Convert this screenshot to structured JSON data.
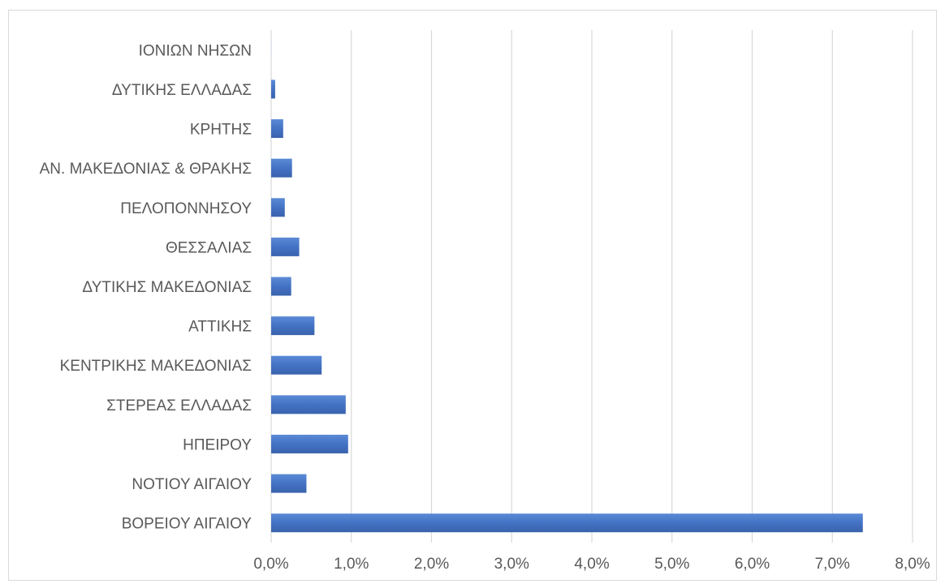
{
  "chart_data": {
    "type": "bar",
    "orientation": "horizontal",
    "title": "",
    "xlabel": "",
    "ylabel": "",
    "categories": [
      "ΙΟΝΙΩΝ ΝΗΣΩΝ",
      "ΔΥΤΙΚΗΣ ΕΛΛΑΔΑΣ",
      "ΚΡΗΤΗΣ",
      "ΑΝ. ΜΑΚΕΔΟΝΙΑΣ & ΘΡΑΚΗΣ",
      "ΠΕΛΟΠΟΝΝΗΣΟΥ",
      "ΘΕΣΣΑΛΙΑΣ",
      "ΔΥΤΙΚΗΣ ΜΑΚΕΔΟΝΙΑΣ",
      "ΑΤΤΙΚΗΣ",
      "ΚΕΝΤΡΙΚΗΣ ΜΑΚΕΔΟΝΙΑΣ",
      "ΣΤΕΡΕΑΣ ΕΛΛΑΔΑΣ",
      "ΗΠΕΙΡΟΥ",
      "ΝΟΤΙΟΥ ΑΙΓΑΙΟΥ",
      "ΒΟΡΕΙΟΥ ΑΙΓΑΙΟΥ"
    ],
    "values": [
      0.01,
      0.05,
      0.15,
      0.26,
      0.17,
      0.35,
      0.25,
      0.54,
      0.63,
      0.93,
      0.96,
      0.44,
      7.38
    ],
    "value_unit": "%",
    "xlim": [
      0,
      8
    ],
    "x_ticks": [
      0,
      1,
      2,
      3,
      4,
      5,
      6,
      7,
      8
    ],
    "x_tick_labels": [
      "0,0%",
      "1,0%",
      "2,0%",
      "3,0%",
      "4,0%",
      "5,0%",
      "6,0%",
      "7,0%",
      "8,0%"
    ],
    "grid": "vertical",
    "legend": "none",
    "bar_color": "#4472c4",
    "grid_color": "#d9d9d9"
  }
}
